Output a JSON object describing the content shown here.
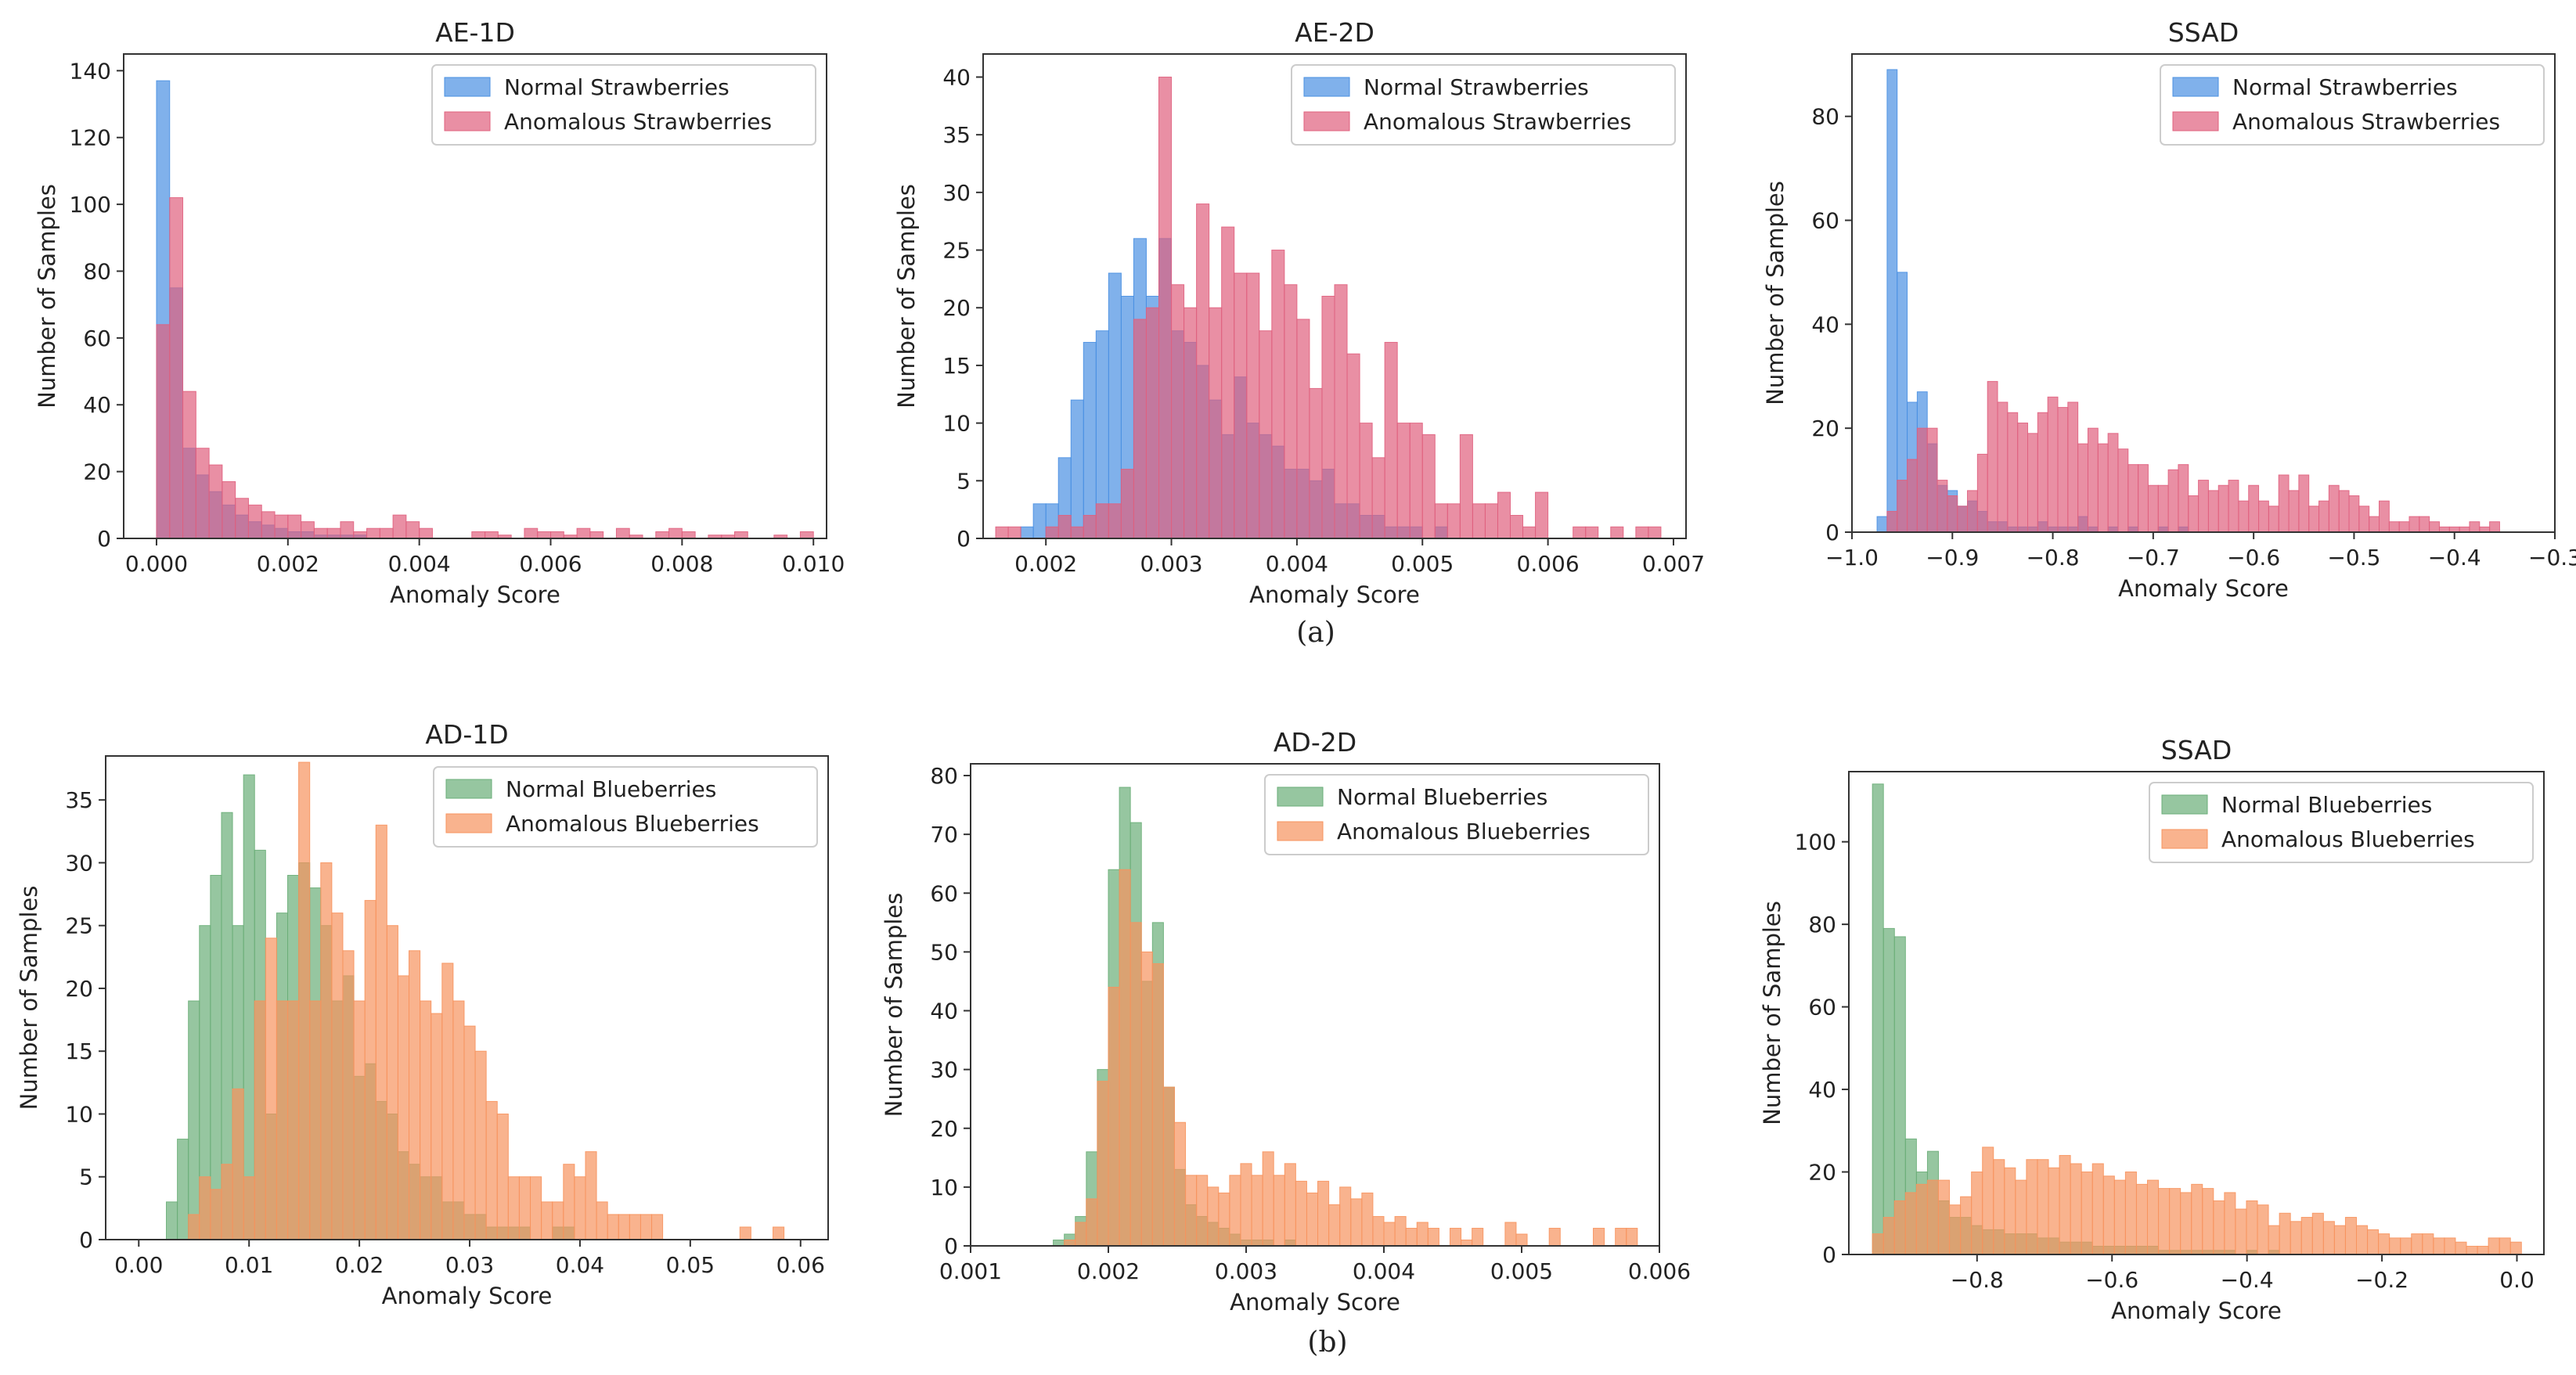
{
  "panel_labels": {
    "a": "(a)",
    "b": "(b)"
  },
  "colors": {
    "normal_strawberry": "#4a90e2",
    "anomalous_strawberry": "#e0607e",
    "normal_blueberry": "#6aae78",
    "anomalous_blueberry": "#f7935e"
  },
  "chart_data": [
    {
      "type": "bar",
      "title": "AE-1D",
      "xlabel": "Anomaly Score",
      "ylabel": "Number of Samples",
      "xlim": [
        -0.0005,
        0.0102
      ],
      "ylim": [
        0,
        145
      ],
      "xticks": [
        0.0,
        0.002,
        0.004,
        0.006,
        0.008,
        0.01
      ],
      "xtick_labels": [
        "0.000",
        "0.002",
        "0.004",
        "0.006",
        "0.008",
        "0.010"
      ],
      "yticks": [
        0,
        20,
        40,
        60,
        80,
        100,
        120,
        140
      ],
      "ytick_labels": [
        "0",
        "20",
        "40",
        "60",
        "80",
        "100",
        "120",
        "140"
      ],
      "legend": [
        "Normal Strawberries",
        "Anomalous Strawberries"
      ],
      "legend_position": "top-right",
      "series": [
        {
          "name": "Normal Strawberries",
          "color_key": "normal_strawberry",
          "start": 0.0,
          "width": 0.0002,
          "values": [
            137,
            75,
            27,
            19,
            14,
            10,
            7,
            5,
            4,
            3,
            2,
            2,
            1,
            1,
            1,
            1,
            0,
            0,
            0,
            0,
            0,
            0,
            0,
            0,
            0,
            0,
            0,
            0,
            0,
            0,
            0,
            0,
            0,
            0,
            0,
            0,
            0,
            0,
            0,
            0,
            0,
            0,
            0,
            0,
            0,
            0,
            0,
            0,
            0,
            0
          ]
        },
        {
          "name": "Anomalous Strawberries",
          "color_key": "anomalous_strawberry",
          "start": 0.0,
          "width": 0.0002,
          "values": [
            64,
            102,
            44,
            27,
            22,
            17,
            12,
            10,
            8,
            7,
            7,
            5,
            3,
            3,
            5,
            2,
            3,
            3,
            7,
            5,
            3,
            0,
            0,
            0,
            2,
            2,
            1,
            0,
            3,
            2,
            2,
            1,
            3,
            2,
            0,
            3,
            1,
            0,
            2,
            3,
            2,
            0,
            1,
            1,
            2,
            0,
            0,
            1,
            0,
            2
          ]
        }
      ]
    },
    {
      "type": "bar",
      "title": "AE-2D",
      "xlabel": "Anomaly Score",
      "ylabel": "Number of Samples",
      "xlim": [
        0.0015,
        0.0071
      ],
      "ylim": [
        0,
        42
      ],
      "xticks": [
        0.002,
        0.003,
        0.004,
        0.005,
        0.006,
        0.007
      ],
      "xtick_labels": [
        "0.002",
        "0.003",
        "0.004",
        "0.005",
        "0.006",
        "0.007"
      ],
      "yticks": [
        0,
        5,
        10,
        15,
        20,
        25,
        30,
        35,
        40
      ],
      "ytick_labels": [
        "0",
        "5",
        "10",
        "15",
        "20",
        "25",
        "30",
        "35",
        "40"
      ],
      "legend": [
        "Normal Strawberries",
        "Anomalous Strawberries"
      ],
      "legend_position": "top-right",
      "series": [
        {
          "name": "Normal Strawberries",
          "color_key": "normal_strawberry",
          "start": 0.0016,
          "width": 0.0001,
          "values": [
            0,
            0,
            1,
            3,
            3,
            7,
            12,
            17,
            18,
            23,
            21,
            26,
            21,
            26,
            18,
            17,
            15,
            12,
            9,
            14,
            10,
            9,
            8,
            6,
            6,
            5,
            6,
            3,
            3,
            2,
            2,
            1,
            1,
            1,
            0,
            1,
            0,
            0,
            0,
            0,
            0,
            0,
            0,
            0,
            0,
            0,
            0,
            0,
            0,
            0,
            0,
            0,
            0
          ]
        },
        {
          "name": "Anomalous Strawberries",
          "color_key": "anomalous_strawberry",
          "start": 0.0016,
          "width": 0.0001,
          "values": [
            1,
            1,
            0,
            0,
            1,
            2,
            1,
            2,
            3,
            3,
            6,
            19,
            20,
            40,
            22,
            20,
            29,
            20,
            27,
            23,
            23,
            18,
            25,
            22,
            19,
            13,
            21,
            22,
            16,
            10,
            7,
            17,
            10,
            10,
            9,
            3,
            3,
            9,
            3,
            3,
            4,
            2,
            1,
            4,
            0,
            0,
            1,
            1,
            0,
            1,
            0,
            1,
            1
          ]
        }
      ]
    },
    {
      "type": "bar",
      "title": "SSAD",
      "xlabel": "Anomaly Score",
      "ylabel": "Number of Samples",
      "xlim": [
        -1.0,
        -0.3
      ],
      "ylim": [
        0,
        92
      ],
      "xticks": [
        -1.0,
        -0.9,
        -0.8,
        -0.7,
        -0.6,
        -0.5,
        -0.4,
        -0.3
      ],
      "xtick_labels": [
        "−1.0",
        "−0.9",
        "−0.8",
        "−0.7",
        "−0.6",
        "−0.5",
        "−0.4",
        "−0.3"
      ],
      "yticks": [
        0,
        20,
        40,
        60,
        80
      ],
      "ytick_labels": [
        "0",
        "20",
        "40",
        "60",
        "80"
      ],
      "legend": [
        "Normal Strawberries",
        "Anomalous Strawberries"
      ],
      "legend_position": "top-right",
      "series": [
        {
          "name": "Normal Strawberries",
          "color_key": "normal_strawberry",
          "start": -0.975,
          "width": 0.01,
          "values": [
            3,
            89,
            50,
            25,
            27,
            17,
            9,
            8,
            5,
            6,
            4,
            2,
            2,
            1,
            1,
            1,
            2,
            1,
            1,
            1,
            3,
            1,
            0,
            1,
            0,
            1,
            0,
            0,
            1,
            0,
            1,
            0,
            0,
            0,
            0,
            0,
            0,
            0,
            0,
            0,
            0,
            0,
            0,
            0,
            0,
            0,
            0,
            0,
            0,
            0,
            0,
            0,
            0,
            0,
            0,
            0,
            0,
            0,
            0,
            0,
            0,
            0
          ]
        },
        {
          "name": "Anomalous Strawberries",
          "color_key": "anomalous_strawberry",
          "start": -0.975,
          "width": 0.01,
          "values": [
            0,
            4,
            10,
            14,
            20,
            20,
            10,
            7,
            5,
            8,
            15,
            29,
            25,
            23,
            21,
            19,
            23,
            26,
            24,
            25,
            17,
            20,
            17,
            19,
            16,
            13,
            13,
            9,
            9,
            12,
            13,
            7,
            10,
            8,
            9,
            10,
            6,
            9,
            6,
            5,
            11,
            8,
            11,
            5,
            6,
            9,
            8,
            7,
            5,
            3,
            6,
            2,
            2,
            3,
            3,
            2,
            1,
            1,
            1,
            2,
            1,
            2
          ]
        }
      ]
    },
    {
      "type": "bar",
      "title": "AD-1D",
      "xlabel": "Anomaly Score",
      "ylabel": "Number of Samples",
      "xlim": [
        -0.003,
        0.0625
      ],
      "ylim": [
        0,
        38.5
      ],
      "xticks": [
        0.0,
        0.01,
        0.02,
        0.03,
        0.04,
        0.05,
        0.06
      ],
      "xtick_labels": [
        "0.00",
        "0.01",
        "0.02",
        "0.03",
        "0.04",
        "0.05",
        "0.06"
      ],
      "yticks": [
        0,
        5,
        10,
        15,
        20,
        25,
        30,
        35
      ],
      "ytick_labels": [
        "0",
        "5",
        "10",
        "15",
        "20",
        "25",
        "30",
        "35"
      ],
      "legend": [
        "Normal Blueberries",
        "Anomalous Blueberries"
      ],
      "legend_position": "top-right",
      "series": [
        {
          "name": "Normal Blueberries",
          "color_key": "normal_blueberry",
          "start": 0.0025,
          "width": 0.001,
          "values": [
            3,
            8,
            19,
            25,
            29,
            34,
            25,
            37,
            31,
            10,
            26,
            29,
            30,
            28,
            25,
            19,
            21,
            13,
            14,
            11,
            10,
            7,
            6,
            5,
            5,
            3,
            3,
            2,
            2,
            1,
            1,
            1,
            1,
            0,
            0,
            1,
            1,
            0,
            0,
            0,
            0,
            0,
            0,
            0,
            0,
            0,
            0,
            0,
            0,
            0,
            0,
            0,
            0,
            0,
            0,
            0,
            0,
            0
          ]
        },
        {
          "name": "Anomalous Blueberries",
          "color_key": "anomalous_blueberry",
          "start": 0.0025,
          "width": 0.001,
          "values": [
            0,
            0,
            2,
            5,
            4,
            6,
            12,
            5,
            19,
            24,
            19,
            19,
            38,
            19,
            30,
            26,
            23,
            19,
            27,
            33,
            25,
            21,
            23,
            19,
            18,
            22,
            19,
            17,
            15,
            11,
            10,
            5,
            5,
            5,
            3,
            3,
            6,
            5,
            7,
            3,
            2,
            2,
            2,
            2,
            2,
            0,
            0,
            0,
            0,
            0,
            0,
            0,
            1,
            0,
            0,
            1,
            0
          ]
        }
      ]
    },
    {
      "type": "bar",
      "title": "AD-2D",
      "xlabel": "Anomaly Score",
      "ylabel": "Number of Samples",
      "xlim": [
        0.001,
        0.006
      ],
      "ylim": [
        0,
        82
      ],
      "xticks": [
        0.001,
        0.002,
        0.003,
        0.004,
        0.005,
        0.006
      ],
      "xtick_labels": [
        "0.001",
        "0.002",
        "0.003",
        "0.004",
        "0.005",
        "0.006"
      ],
      "yticks": [
        0,
        10,
        20,
        30,
        40,
        50,
        60,
        70,
        80
      ],
      "ytick_labels": [
        "0",
        "10",
        "20",
        "30",
        "40",
        "50",
        "60",
        "70",
        "80"
      ],
      "legend": [
        "Normal Blueberries",
        "Anomalous Blueberries"
      ],
      "legend_position": "top-right",
      "series": [
        {
          "name": "Normal Blueberries",
          "color_key": "normal_blueberry",
          "start": 0.0016,
          "width": 8e-05,
          "values": [
            1,
            2,
            5,
            16,
            30,
            64,
            78,
            72,
            45,
            55,
            27,
            13,
            7,
            5,
            4,
            3,
            2,
            1,
            1,
            1,
            0,
            1,
            0,
            0,
            0,
            0,
            0,
            0,
            0,
            0,
            0,
            0,
            0,
            0,
            0,
            0,
            0,
            0,
            0,
            0,
            0,
            0,
            0,
            0,
            0,
            0,
            0,
            0,
            0,
            0,
            0,
            0,
            0
          ]
        },
        {
          "name": "Anomalous Blueberries",
          "color_key": "anomalous_blueberry",
          "start": 0.0016,
          "width": 8e-05,
          "values": [
            0,
            1,
            4,
            8,
            28,
            44,
            64,
            55,
            50,
            48,
            27,
            21,
            12,
            12,
            10,
            9,
            12,
            14,
            12,
            16,
            12,
            14,
            11,
            9,
            11,
            7,
            10,
            8,
            9,
            5,
            4,
            5,
            3,
            4,
            3,
            0,
            3,
            1,
            3,
            0,
            0,
            4,
            2,
            0,
            0,
            3,
            0,
            0,
            0,
            3,
            0,
            3,
            3
          ]
        }
      ]
    },
    {
      "type": "bar",
      "title": "SSAD",
      "xlabel": "Anomaly Score",
      "ylabel": "Number of Samples",
      "xlim": [
        -0.99,
        0.04
      ],
      "ylim": [
        0,
        117
      ],
      "xticks": [
        -0.8,
        -0.6,
        -0.4,
        -0.2,
        0.0
      ],
      "xtick_labels": [
        "−0.8",
        "−0.6",
        "−0.4",
        "−0.2",
        "0.0"
      ],
      "yticks": [
        0,
        20,
        40,
        60,
        80,
        100
      ],
      "ytick_labels": [
        "0",
        "20",
        "40",
        "60",
        "80",
        "100"
      ],
      "legend": [
        "Normal Blueberries",
        "Anomalous Blueberries"
      ],
      "legend_position": "top-right",
      "series": [
        {
          "name": "Normal Blueberries",
          "color_key": "normal_blueberry",
          "start": -0.955,
          "width": 0.0163,
          "values": [
            114,
            79,
            77,
            28,
            20,
            25,
            13,
            9,
            9,
            7,
            6,
            6,
            5,
            5,
            5,
            4,
            4,
            3,
            3,
            3,
            2,
            2,
            2,
            2,
            2,
            2,
            1,
            1,
            1,
            1,
            1,
            1,
            1,
            0,
            1,
            0,
            1,
            0,
            0,
            0,
            0,
            0,
            0,
            0,
            0,
            0,
            0,
            0,
            0,
            0,
            0,
            0,
            0,
            0,
            0,
            0,
            0,
            0,
            0
          ]
        },
        {
          "name": "Anomalous Blueberries",
          "color_key": "anomalous_blueberry",
          "start": -0.955,
          "width": 0.0163,
          "values": [
            5,
            9,
            13,
            15,
            17,
            18,
            18,
            12,
            14,
            20,
            26,
            23,
            21,
            18,
            23,
            23,
            21,
            24,
            22,
            20,
            22,
            19,
            18,
            20,
            17,
            18,
            16,
            16,
            15,
            17,
            16,
            13,
            15,
            11,
            13,
            12,
            7,
            10,
            8,
            9,
            10,
            8,
            7,
            9,
            7,
            6,
            5,
            4,
            4,
            5,
            5,
            4,
            4,
            3,
            2,
            2,
            4,
            4,
            3
          ]
        }
      ]
    }
  ]
}
